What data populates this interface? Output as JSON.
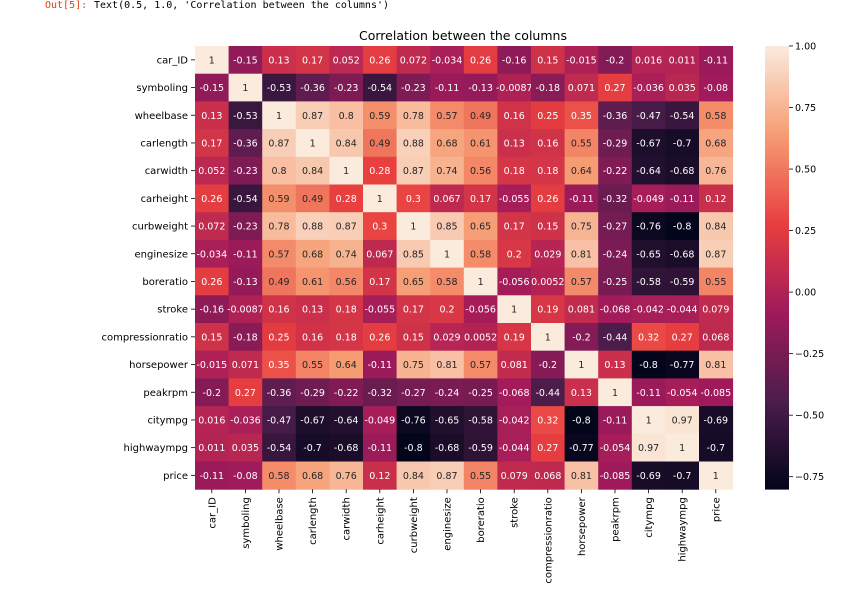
{
  "notebook": {
    "prompt": "Out[5]:",
    "output_text": "Text(0.5, 1.0, 'Correlation between the columns')"
  },
  "chart_data": {
    "type": "heatmap",
    "title": "Correlation between the columns",
    "rows": [
      "car_ID",
      "symboling",
      "wheelbase",
      "carlength",
      "carwidth",
      "carheight",
      "curbweight",
      "enginesize",
      "boreratio",
      "stroke",
      "compressionratio",
      "horsepower",
      "peakrpm",
      "citympg",
      "highwaympg",
      "price"
    ],
    "columns": [
      "car_ID",
      "symboling",
      "wheelbase",
      "carlength",
      "carwidth",
      "carheight",
      "curbweight",
      "enginesize",
      "boreratio",
      "stroke",
      "compressionratio",
      "horsepower",
      "peakrpm",
      "citympg",
      "highwaympg",
      "price"
    ],
    "labels": [
      [
        "1",
        "-0.15",
        "0.13",
        "0.17",
        "0.052",
        "0.26",
        "0.072",
        "-0.034",
        "0.26",
        "-0.16",
        "0.15",
        "-0.015",
        "-0.2",
        "0.016",
        "0.011",
        "-0.11"
      ],
      [
        "-0.15",
        "1",
        "-0.53",
        "-0.36",
        "-0.23",
        "-0.54",
        "-0.23",
        "-0.11",
        "-0.13",
        "-0.0087",
        "-0.18",
        "0.071",
        "0.27",
        "-0.036",
        "0.035",
        "-0.08"
      ],
      [
        "0.13",
        "-0.53",
        "1",
        "0.87",
        "0.8",
        "0.59",
        "0.78",
        "0.57",
        "0.49",
        "0.16",
        "0.25",
        "0.35",
        "-0.36",
        "-0.47",
        "-0.54",
        "0.58"
      ],
      [
        "0.17",
        "-0.36",
        "0.87",
        "1",
        "0.84",
        "0.49",
        "0.88",
        "0.68",
        "0.61",
        "0.13",
        "0.16",
        "0.55",
        "-0.29",
        "-0.67",
        "-0.7",
        "0.68"
      ],
      [
        "0.052",
        "-0.23",
        "0.8",
        "0.84",
        "1",
        "0.28",
        "0.87",
        "0.74",
        "0.56",
        "0.18",
        "0.18",
        "0.64",
        "-0.22",
        "-0.64",
        "-0.68",
        "0.76"
      ],
      [
        "0.26",
        "-0.54",
        "0.59",
        "0.49",
        "0.28",
        "1",
        "0.3",
        "0.067",
        "0.17",
        "-0.055",
        "0.26",
        "-0.11",
        "-0.32",
        "-0.049",
        "-0.11",
        "0.12"
      ],
      [
        "0.072",
        "-0.23",
        "0.78",
        "0.88",
        "0.87",
        "0.3",
        "1",
        "0.85",
        "0.65",
        "0.17",
        "0.15",
        "0.75",
        "-0.27",
        "-0.76",
        "-0.8",
        "0.84"
      ],
      [
        "-0.034",
        "-0.11",
        "0.57",
        "0.68",
        "0.74",
        "0.067",
        "0.85",
        "1",
        "0.58",
        "0.2",
        "0.029",
        "0.81",
        "-0.24",
        "-0.65",
        "-0.68",
        "0.87"
      ],
      [
        "0.26",
        "-0.13",
        "0.49",
        "0.61",
        "0.56",
        "0.17",
        "0.65",
        "0.58",
        "1",
        "-0.056",
        "0.0052",
        "0.57",
        "-0.25",
        "-0.58",
        "-0.59",
        "0.55"
      ],
      [
        "-0.16",
        "-0.0087",
        "0.16",
        "0.13",
        "0.18",
        "-0.055",
        "0.17",
        "0.2",
        "-0.056",
        "1",
        "0.19",
        "0.081",
        "-0.068",
        "-0.042",
        "-0.044",
        "0.079"
      ],
      [
        "0.15",
        "-0.18",
        "0.25",
        "0.16",
        "0.18",
        "0.26",
        "0.15",
        "0.029",
        "0.0052",
        "0.19",
        "1",
        "-0.2",
        "-0.44",
        "0.32",
        "0.27",
        "0.068"
      ],
      [
        "-0.015",
        "0.071",
        "0.35",
        "0.55",
        "0.64",
        "-0.11",
        "0.75",
        "0.81",
        "0.57",
        "0.081",
        "-0.2",
        "1",
        "0.13",
        "-0.8",
        "-0.77",
        "0.81"
      ],
      [
        "-0.2",
        "0.27",
        "-0.36",
        "-0.29",
        "-0.22",
        "-0.32",
        "-0.27",
        "-0.24",
        "-0.25",
        "-0.068",
        "-0.44",
        "0.13",
        "1",
        "-0.11",
        "-0.054",
        "-0.085"
      ],
      [
        "0.016",
        "-0.036",
        "-0.47",
        "-0.67",
        "-0.64",
        "-0.049",
        "-0.76",
        "-0.65",
        "-0.58",
        "-0.042",
        "0.32",
        "-0.8",
        "-0.11",
        "1",
        "0.97",
        "-0.69"
      ],
      [
        "0.011",
        "0.035",
        "-0.54",
        "-0.7",
        "-0.68",
        "-0.11",
        "-0.8",
        "-0.68",
        "-0.59",
        "-0.044",
        "0.27",
        "-0.77",
        "-0.054",
        "0.97",
        "1",
        "-0.7"
      ],
      [
        "-0.11",
        "-0.08",
        "0.58",
        "0.68",
        "0.76",
        "0.12",
        "0.84",
        "0.87",
        "0.55",
        "0.079",
        "0.068",
        "0.81",
        "-0.085",
        "-0.69",
        "-0.7",
        "1"
      ]
    ],
    "colorbar": {
      "min": -0.8,
      "max": 1.0,
      "ticks": [
        -0.75,
        -0.5,
        -0.25,
        0.0,
        0.25,
        0.5,
        0.75,
        1.0
      ],
      "tick_labels": [
        "−0.75",
        "−0.50",
        "−0.25",
        "0.00",
        "0.25",
        "0.50",
        "0.75",
        "1.00"
      ]
    },
    "colormap": "rocket",
    "colormap_stops": [
      "#03051a",
      "#4c1d4b",
      "#a11a5b",
      "#e83f3f",
      "#f69c73",
      "#faebdd"
    ]
  }
}
